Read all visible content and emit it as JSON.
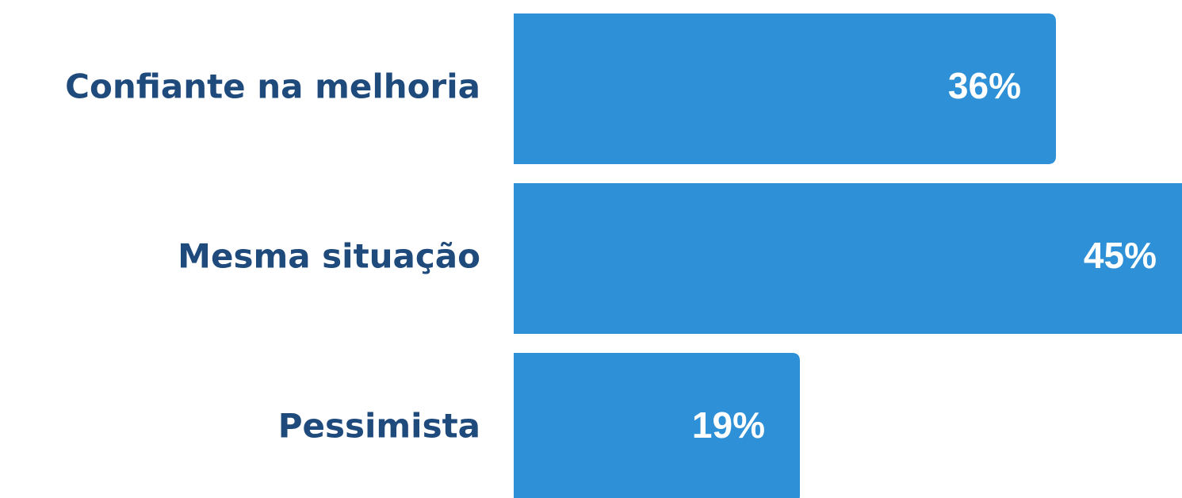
{
  "chart_data": {
    "type": "bar",
    "orientation": "horizontal",
    "categories": [
      "Confiante na melhoria",
      "Mesma situação",
      "Pessimista"
    ],
    "values": [
      36,
      45,
      19
    ],
    "value_labels": [
      "36%",
      "45%",
      "19%"
    ],
    "color": "#2e90d6"
  }
}
